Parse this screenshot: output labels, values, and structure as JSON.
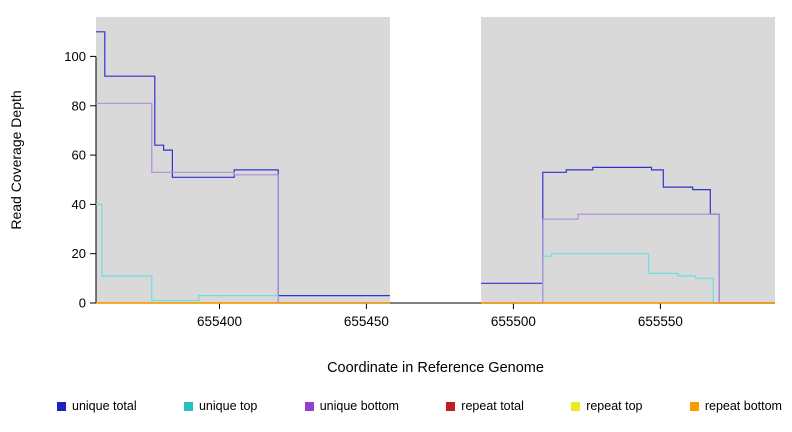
{
  "chart_data": {
    "type": "line",
    "title": "",
    "xlabel": "Coordinate in Reference Genome",
    "ylabel": "Read Coverage Depth",
    "xlim": [
      655358,
      655589
    ],
    "ylim": [
      0,
      116
    ],
    "xticks": [
      655400,
      655450,
      655500,
      655550
    ],
    "yticks": [
      0,
      20,
      40,
      60,
      80,
      100
    ],
    "grid": false,
    "legend_position": "bottom",
    "background_regions": [
      {
        "x1": 655358,
        "x2": 655458,
        "color": "#d9d9d9"
      },
      {
        "x1": 655489,
        "x2": 655589,
        "color": "#d9d9d9"
      }
    ],
    "series": [
      {
        "name": "unique total",
        "color": "#3333cc",
        "segments": [
          [
            [
              655358,
              110
            ],
            [
              655361,
              110
            ],
            [
              655361,
              92
            ],
            [
              655378,
              92
            ],
            [
              655378,
              64
            ],
            [
              655381,
              64
            ],
            [
              655381,
              62
            ],
            [
              655384,
              62
            ],
            [
              655384,
              51
            ],
            [
              655405,
              51
            ],
            [
              655405,
              54
            ],
            [
              655420,
              54
            ],
            [
              655420,
              3
            ],
            [
              655458,
              3
            ]
          ],
          [
            [
              655489,
              8
            ],
            [
              655510,
              8
            ],
            [
              655510,
              53
            ],
            [
              655518,
              53
            ],
            [
              655518,
              54
            ],
            [
              655527,
              54
            ],
            [
              655527,
              55
            ],
            [
              655547,
              55
            ],
            [
              655547,
              54
            ],
            [
              655551,
              54
            ],
            [
              655551,
              47
            ],
            [
              655561,
              47
            ],
            [
              655561,
              46
            ],
            [
              655567,
              46
            ],
            [
              655567,
              36
            ],
            [
              655570,
              36
            ],
            [
              655570,
              0
            ],
            [
              655589,
              0
            ]
          ]
        ]
      },
      {
        "name": "unique top",
        "color": "#6fdede",
        "segments": [
          [
            [
              655358,
              40
            ],
            [
              655360,
              40
            ],
            [
              655360,
              11
            ],
            [
              655377,
              11
            ],
            [
              655377,
              1
            ],
            [
              655393,
              1
            ],
            [
              655393,
              3
            ],
            [
              655420,
              3
            ],
            [
              655420,
              0
            ],
            [
              655458,
              0
            ]
          ],
          [
            [
              655489,
              0
            ],
            [
              655510,
              0
            ],
            [
              655510,
              19
            ],
            [
              655513,
              19
            ],
            [
              655513,
              20
            ],
            [
              655546,
              20
            ],
            [
              655546,
              12
            ],
            [
              655556,
              12
            ],
            [
              655556,
              11
            ],
            [
              655562,
              11
            ],
            [
              655562,
              10
            ],
            [
              655568,
              10
            ],
            [
              655568,
              0
            ],
            [
              655589,
              0
            ]
          ]
        ]
      },
      {
        "name": "unique bottom",
        "color": "#b18cd9",
        "segments": [
          [
            [
              655358,
              81
            ],
            [
              655377,
              81
            ],
            [
              655377,
              53
            ],
            [
              655405,
              53
            ],
            [
              655405,
              52
            ],
            [
              655420,
              52
            ],
            [
              655420,
              0
            ],
            [
              655458,
              0
            ]
          ],
          [
            [
              655489,
              0
            ],
            [
              655510,
              0
            ],
            [
              655510,
              34
            ],
            [
              655522,
              34
            ],
            [
              655522,
              36
            ],
            [
              655570,
              36
            ],
            [
              655570,
              0
            ],
            [
              655589,
              0
            ]
          ]
        ]
      },
      {
        "name": "repeat total",
        "color": "#cc0000",
        "segments": [
          [
            [
              655358,
              0
            ],
            [
              655458,
              0
            ]
          ],
          [
            [
              655489,
              0
            ],
            [
              655589,
              0
            ]
          ]
        ]
      },
      {
        "name": "repeat top",
        "color": "#eeee00",
        "segments": [
          [
            [
              655358,
              0
            ],
            [
              655458,
              0
            ]
          ],
          [
            [
              655489,
              0
            ],
            [
              655589,
              0
            ]
          ]
        ]
      },
      {
        "name": "repeat bottom",
        "color": "#ff9900",
        "segments": [
          [
            [
              655358,
              0
            ],
            [
              655458,
              0
            ]
          ],
          [
            [
              655489,
              0
            ],
            [
              655589,
              0
            ]
          ]
        ]
      }
    ],
    "legend": [
      {
        "label": "unique total",
        "color": "#1f1fbf"
      },
      {
        "label": "unique top",
        "color": "#2abfbf"
      },
      {
        "label": "unique bottom",
        "color": "#9440c9"
      },
      {
        "label": "repeat total",
        "color": "#c01f1f"
      },
      {
        "label": "repeat top",
        "color": "#ebeb24"
      },
      {
        "label": "repeat bottom",
        "color": "#ff9900"
      }
    ]
  }
}
